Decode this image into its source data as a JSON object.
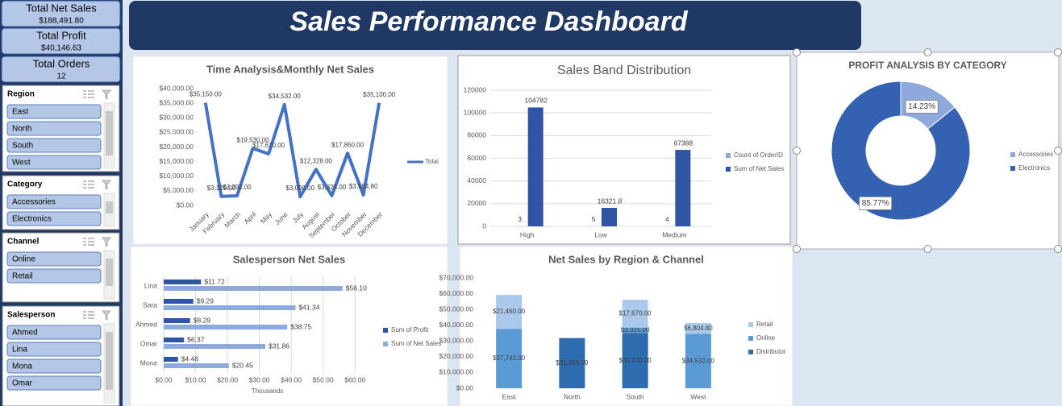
{
  "header": {
    "title": "Sales Performance Dashboard"
  },
  "kpis": [
    {
      "label": "Total Net Sales",
      "value": "$188,491.80"
    },
    {
      "label": "Total Profit",
      "value": "$40,146.63"
    },
    {
      "label": "Total Orders",
      "value": "12"
    }
  ],
  "slicers": [
    {
      "title": "Region",
      "items": [
        "East",
        "North",
        "South",
        "West"
      ]
    },
    {
      "title": "Category",
      "items": [
        "Accessories",
        "Electronics"
      ]
    },
    {
      "title": "Channel",
      "items": [
        "Online",
        "Retail"
      ]
    },
    {
      "title": "Salesperson",
      "items": [
        "Ahmed",
        "Lina",
        "Mona",
        "Omar"
      ]
    }
  ],
  "chart_data": [
    {
      "type": "line",
      "title": "Time Analysis&Monthly Net Sales",
      "categories": [
        "January",
        "February",
        "March",
        "April",
        "May",
        "June",
        "July",
        "August",
        "September",
        "October",
        "November",
        "December"
      ],
      "series": [
        {
          "name": "Total",
          "color": "#4472c4",
          "values": [
            35150,
            3120,
            3292,
            19530,
            17670,
            34532,
            3000,
            12328,
            3325,
            17860,
            3584.8,
            35100
          ],
          "value_labels": [
            "$35,150.00",
            "$3,120.00",
            "$3,292.00",
            "$19,530.00",
            "$17,670.00",
            "$34,532.00",
            "$3,000.00",
            "$12,328.00",
            "$3,325.00",
            "$17,860.00",
            "$3,584.80",
            "$35,100.00"
          ]
        }
      ],
      "ylim": [
        0,
        40000
      ],
      "yticks": [
        {
          "value": 0,
          "label": "$0.00"
        },
        {
          "value": 5000,
          "label": "$5,000.00"
        },
        {
          "value": 10000,
          "label": "$10,000.00"
        },
        {
          "value": 15000,
          "label": "$15,000.00"
        },
        {
          "value": 20000,
          "label": "$20,000.00"
        },
        {
          "value": 25000,
          "label": "$25,000.00"
        },
        {
          "value": 30000,
          "label": "$30,000.00"
        },
        {
          "value": 35000,
          "label": "$35,000.00"
        },
        {
          "value": 40000,
          "label": "$40,000.00"
        }
      ],
      "grid": false,
      "legend": "right"
    },
    {
      "type": "bar",
      "title": "Sales Band Distribution",
      "categories": [
        "High",
        "Low",
        "Medium"
      ],
      "series": [
        {
          "name": "Count of OrderID",
          "color": "#8ea9db",
          "values": [
            3,
            5,
            4
          ]
        },
        {
          "name": "Sum of Net Sales",
          "color": "#2f55a4",
          "values": [
            104782,
            16321.8,
            67388
          ]
        }
      ],
      "ylim": [
        0,
        120000
      ],
      "yticks": [
        0,
        20000,
        40000,
        60000,
        80000,
        100000,
        120000
      ],
      "grid": true,
      "legend": "right"
    },
    {
      "type": "donut",
      "title": "PROFIT ANALYSIS BY CATEGORY",
      "categories": [
        "Accessories",
        "Electronics"
      ],
      "values": [
        14.23,
        85.77
      ],
      "value_labels": [
        "14.23%",
        "85.77%"
      ],
      "colors": [
        "#8ea9db",
        "#3462b0"
      ],
      "legend": "right"
    },
    {
      "type": "bar",
      "orientation": "horizontal",
      "title": "Salesperson Net Sales",
      "categories": [
        "Lina",
        "Sara",
        "Ahmed",
        "Omar",
        "Mona"
      ],
      "series": [
        {
          "name": "Sum of Profit",
          "color": "#2f55a4",
          "values": [
            11.72,
            9.29,
            8.29,
            6.37,
            4.48
          ],
          "value_labels": [
            "$11.72",
            "$9.29",
            "$8.29",
            "$6.37",
            "$4.48"
          ]
        },
        {
          "name": "Sum of Net Sales",
          "color": "#8ea9db",
          "values": [
            56.1,
            41.34,
            38.75,
            31.86,
            20.45
          ],
          "value_labels": [
            "$56.10",
            "$41.34",
            "$38.75",
            "$31.86",
            "$20.45"
          ]
        }
      ],
      "xlim": [
        0,
        65
      ],
      "xticks": [
        {
          "value": 0,
          "label": "$0.00"
        },
        {
          "value": 10,
          "label": "$10.00"
        },
        {
          "value": 20,
          "label": "$20.00"
        },
        {
          "value": 30,
          "label": "$30.00"
        },
        {
          "value": 40,
          "label": "$40.00"
        },
        {
          "value": 50,
          "label": "$50.00"
        },
        {
          "value": 60,
          "label": "$60.00"
        }
      ],
      "xlabel": "Thousands",
      "grid": true,
      "legend": "right"
    },
    {
      "type": "bar",
      "stacked": true,
      "title": "Net Sales by Region & Channel",
      "categories": [
        "East",
        "North",
        "South",
        "West"
      ],
      "series": [
        {
          "name": "Distributor",
          "color": "#2e6cb0",
          "values": [
            null,
            31858,
            35100,
            null
          ],
          "value_labels": [
            null,
            "$31,858.00",
            "$35,100.00",
            null
          ]
        },
        {
          "name": "Online",
          "color": "#5b9bd5",
          "values": [
            37742,
            null,
            3325,
            34532
          ],
          "value_labels": [
            "$37,742.00",
            null,
            "$3,325.00",
            "$34,532.00"
          ]
        },
        {
          "name": "Retail",
          "color": "#a9c8ea",
          "values": [
            21460,
            null,
            17670,
            6804.8
          ],
          "value_labels": [
            "$21,460.00",
            null,
            "$17,670.00",
            "$6,804.80"
          ]
        }
      ],
      "ylim": [
        0,
        70000
      ],
      "yticks": [
        {
          "value": 0,
          "label": "$0.00"
        },
        {
          "value": 10000,
          "label": "$10,000.00"
        },
        {
          "value": 20000,
          "label": "$20,000.00"
        },
        {
          "value": 30000,
          "label": "$30,000.00"
        },
        {
          "value": 40000,
          "label": "$40,000.00"
        },
        {
          "value": 50000,
          "label": "$50,000.00"
        },
        {
          "value": 60000,
          "label": "$60,000.00"
        },
        {
          "value": 70000,
          "label": "$70,000.00"
        }
      ],
      "grid": false,
      "legend": "right"
    }
  ]
}
